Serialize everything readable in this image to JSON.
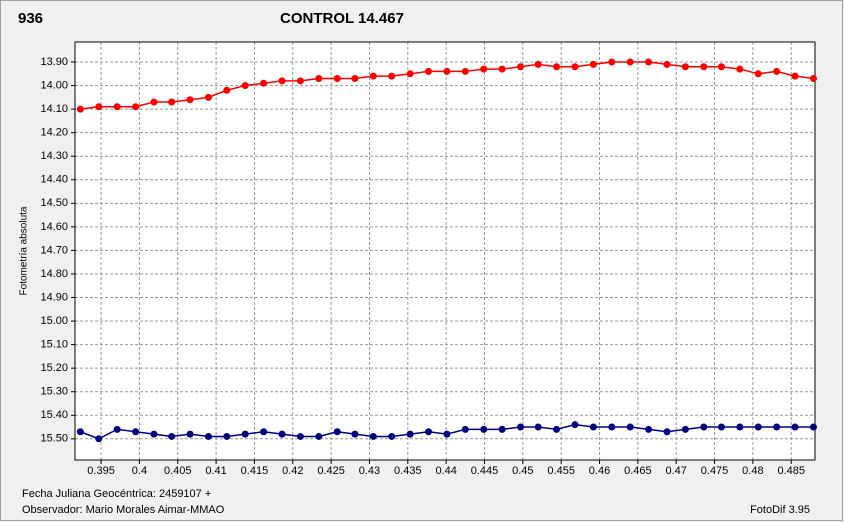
{
  "chart_data": {
    "type": "line",
    "y_label": "Fotometría absoluta",
    "x_label": "Fecha Juliana Geocéntrica: 2459107 +",
    "observer": "Observador: Mario Morales Aimar-MMAO",
    "software": "FotoDif 3.95",
    "x": [
      0.3923,
      0.3947,
      0.3971,
      0.3995,
      0.4019,
      0.4042,
      0.4066,
      0.409,
      0.4114,
      0.4138,
      0.4162,
      0.4186,
      0.421,
      0.4234,
      0.4258,
      0.4281,
      0.4305,
      0.4329,
      0.4353,
      0.4377,
      0.4401,
      0.4425,
      0.4449,
      0.4473,
      0.4497,
      0.452,
      0.4544,
      0.4568,
      0.4592,
      0.4616,
      0.464,
      0.4664,
      0.4688,
      0.4712,
      0.4736,
      0.4759,
      0.4783,
      0.4807,
      0.4831,
      0.4855,
      0.4879
    ],
    "series": [
      {
        "name": "936",
        "color": "#ff0000",
        "values": [
          14.1,
          14.09,
          14.09,
          14.09,
          14.07,
          14.07,
          14.06,
          14.05,
          14.02,
          14.0,
          13.99,
          13.98,
          13.98,
          13.97,
          13.97,
          13.97,
          13.96,
          13.96,
          13.95,
          13.94,
          13.94,
          13.94,
          13.93,
          13.93,
          13.92,
          13.91,
          13.92,
          13.92,
          13.91,
          13.9,
          13.9,
          13.9,
          13.91,
          13.92,
          13.92,
          13.92,
          13.93,
          13.95,
          13.94,
          13.96,
          13.97
        ]
      },
      {
        "name": "CONTROL 14.467",
        "color": "#000080",
        "values": [
          15.47,
          15.5,
          15.46,
          15.47,
          15.48,
          15.49,
          15.48,
          15.49,
          15.49,
          15.48,
          15.47,
          15.48,
          15.49,
          15.49,
          15.47,
          15.48,
          15.49,
          15.49,
          15.48,
          15.47,
          15.48,
          15.46,
          15.46,
          15.46,
          15.45,
          15.45,
          15.46,
          15.44,
          15.45,
          15.45,
          15.45,
          15.46,
          15.47,
          15.46,
          15.45,
          15.45,
          15.45,
          15.45,
          15.45,
          15.45,
          15.45
        ]
      }
    ],
    "xlim": [
      0.3916,
      0.4881
    ],
    "ylim": [
      15.59,
      13.815
    ],
    "xticks": [
      0.395,
      0.4,
      0.405,
      0.41,
      0.415,
      0.42,
      0.425,
      0.43,
      0.435,
      0.44,
      0.445,
      0.45,
      0.455,
      0.46,
      0.465,
      0.47,
      0.475,
      0.48,
      0.485
    ],
    "yticks": [
      {
        "value": 13.9,
        "label": "13.90"
      },
      {
        "value": 14.0,
        "label": "14.00"
      },
      {
        "value": 14.1,
        "label": "14.10"
      },
      {
        "value": 14.2,
        "label": "14.20"
      },
      {
        "value": 14.3,
        "label": "14.30"
      },
      {
        "value": 14.4,
        "label": "14.40"
      },
      {
        "value": 14.5,
        "label": "14.50"
      },
      {
        "value": 14.6,
        "label": "14.60"
      },
      {
        "value": 14.7,
        "label": "14.70"
      },
      {
        "value": 14.8,
        "label": "14.80"
      },
      {
        "value": 14.9,
        "label": "14.90"
      },
      {
        "value": 15.0,
        "label": "15.00"
      },
      {
        "value": 15.1,
        "label": "15.10"
      },
      {
        "value": 15.2,
        "label": "15.20"
      },
      {
        "value": 15.3,
        "label": "15.30"
      },
      {
        "value": 15.4,
        "label": "15.40"
      },
      {
        "value": 15.5,
        "label": "15.50"
      }
    ],
    "grid": true,
    "markers": true
  }
}
